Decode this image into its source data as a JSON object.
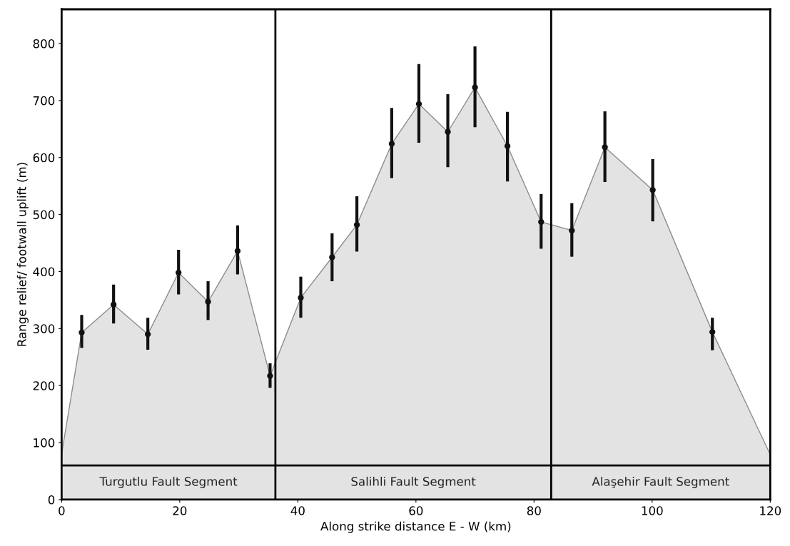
{
  "chart_data": {
    "type": "area",
    "xlabel": "Along strike distance E - W (km)",
    "ylabel": "Range relief/ footwall uplift (m)",
    "xlim": [
      0,
      120
    ],
    "xticks": [
      0,
      20,
      40,
      60,
      80,
      100,
      120
    ],
    "ylim": [
      0,
      860
    ],
    "yticks": [
      0,
      100,
      200,
      300,
      400,
      500,
      600,
      700,
      800
    ],
    "grid": false,
    "series": [
      {
        "color": "#e3e3e3",
        "x": [
          0,
          3.4,
          8.8,
          14.6,
          19.8,
          24.8,
          29.8,
          35.3,
          40.5,
          45.8,
          50.0,
          55.9,
          60.5,
          65.4,
          70.0,
          75.5,
          81.2,
          86.4,
          92.0,
          100.1,
          110.2,
          120
        ],
        "values": [
          80,
          293,
          342,
          290,
          398,
          347,
          436,
          217,
          354,
          425,
          482,
          624,
          694,
          645,
          723,
          620,
          487,
          472,
          618,
          543,
          294,
          79
        ]
      },
      {
        "type": "scatter",
        "color": "#111111",
        "marker": "circle",
        "x": [
          3.4,
          8.8,
          14.6,
          19.8,
          24.8,
          29.8,
          35.3,
          40.5,
          45.8,
          50.0,
          55.9,
          60.5,
          65.4,
          70.0,
          75.5,
          81.2,
          86.4,
          92.0,
          100.1,
          110.2
        ],
        "values": [
          293,
          342,
          290,
          398,
          347,
          436,
          217,
          354,
          425,
          482,
          624,
          694,
          645,
          723,
          620,
          487,
          472,
          618,
          543,
          294
        ],
        "errors": [
          [
            266,
            324
          ],
          [
            309,
            377
          ],
          [
            263,
            319
          ],
          [
            360,
            438
          ],
          [
            315,
            383
          ],
          [
            395,
            481
          ],
          [
            196,
            239
          ],
          [
            319,
            391
          ],
          [
            383,
            467
          ],
          [
            435,
            532
          ],
          [
            564,
            687
          ],
          [
            626,
            764
          ],
          [
            583,
            711
          ],
          [
            653,
            795
          ],
          [
            558,
            680
          ],
          [
            440,
            536
          ],
          [
            426,
            520
          ],
          [
            557,
            681
          ],
          [
            488,
            597
          ],
          [
            262,
            319
          ]
        ]
      }
    ],
    "ref_lines": [
      {
        "axis": "x",
        "value": 36.2,
        "color": "#000000"
      },
      {
        "axis": "x",
        "value": 82.9,
        "color": "#000000"
      },
      {
        "axis": "y",
        "value": 60,
        "color": "#000000"
      }
    ],
    "annotations": [
      "Turgutlu Fault Segment",
      "Salihli Fault Segment",
      "Alaşehir Fault Segment"
    ]
  }
}
